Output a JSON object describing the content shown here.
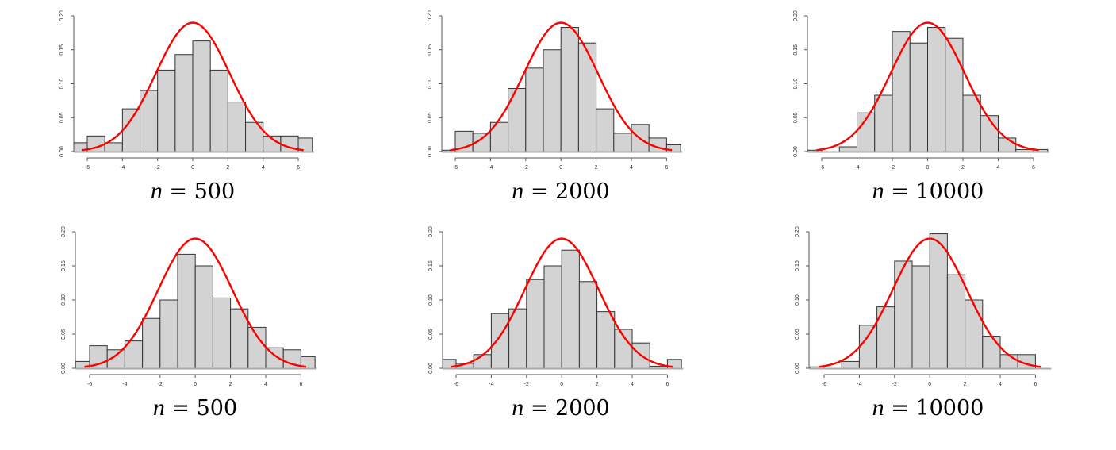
{
  "figure": {
    "layout": "2 rows x 3 columns of density histograms with a red fitted normal curve",
    "colors": {
      "bar_fill": "#d3d3d3",
      "bar_stroke": "#333333",
      "curve": "#ff0000",
      "axis": "#555555",
      "background": "#ffffff"
    }
  },
  "captions": [
    {
      "var": "n",
      "eq": " = 500"
    },
    {
      "var": "n",
      "eq": " = 2000"
    },
    {
      "var": "n",
      "eq": " = 10000"
    },
    {
      "var": "n",
      "eq": " = 500"
    },
    {
      "var": "n",
      "eq": " = 2000"
    },
    {
      "var": "n",
      "eq": " = 10000"
    }
  ],
  "chart_data": [
    {
      "type": "bar",
      "title": "n = 500",
      "row": 1,
      "col": 1,
      "xlabel": "",
      "ylabel": "",
      "xlim": [
        -6.8,
        6.8
      ],
      "ylim": [
        0,
        0.2
      ],
      "xticks": [
        -6,
        -4,
        -2,
        0,
        2,
        4,
        6
      ],
      "yticks": [
        "0.00",
        "0.05",
        "0.10",
        "0.15",
        "0.20"
      ],
      "bin_edges": [
        -6.8,
        -6,
        -5,
        -4,
        -3,
        -2,
        -1,
        0,
        1,
        2,
        3,
        4,
        5,
        6,
        6.8
      ],
      "values": [
        0.013,
        0.023,
        0.013,
        0.063,
        0.09,
        0.12,
        0.143,
        0.163,
        0.12,
        0.073,
        0.043,
        0.023,
        0.023,
        0.02
      ],
      "overlay": {
        "type": "line",
        "name": "normal density",
        "mean": 0,
        "sd": 2.1,
        "peak": 0.19,
        "x_range": [
          -6.3,
          6.3
        ]
      },
      "grid": false,
      "legend": null
    },
    {
      "type": "bar",
      "title": "n = 2000",
      "row": 1,
      "col": 2,
      "xlabel": "",
      "ylabel": "",
      "xlim": [
        -6.8,
        6.8
      ],
      "ylim": [
        0,
        0.2
      ],
      "xticks": [
        -6,
        -4,
        -2,
        0,
        2,
        4,
        6
      ],
      "yticks": [
        "0.00",
        "0.05",
        "0.10",
        "0.15",
        "0.20"
      ],
      "bin_edges": [
        -6.8,
        -6,
        -5,
        -4,
        -3,
        -2,
        -1,
        0,
        1,
        2,
        3,
        4,
        5,
        6,
        6.8
      ],
      "values": [
        0.002,
        0.03,
        0.027,
        0.043,
        0.093,
        0.123,
        0.15,
        0.183,
        0.16,
        0.063,
        0.027,
        0.04,
        0.02,
        0.01
      ],
      "overlay": {
        "type": "line",
        "name": "normal density",
        "mean": 0,
        "sd": 2.1,
        "peak": 0.19,
        "x_range": [
          -6.3,
          6.3
        ]
      },
      "grid": false,
      "legend": null
    },
    {
      "type": "bar",
      "title": "n = 10000",
      "row": 1,
      "col": 3,
      "xlabel": "",
      "ylabel": "",
      "xlim": [
        -6.8,
        6.8
      ],
      "ylim": [
        0,
        0.2
      ],
      "xticks": [
        -6,
        -4,
        -2,
        0,
        2,
        4,
        6
      ],
      "yticks": [
        "0.00",
        "0.05",
        "0.10",
        "0.15",
        "0.20"
      ],
      "bin_edges": [
        -6.8,
        -6,
        -5,
        -4,
        -3,
        -2,
        -1,
        0,
        1,
        2,
        3,
        4,
        5,
        6,
        6.8
      ],
      "values": [
        0.002,
        0.0,
        0.007,
        0.057,
        0.083,
        0.177,
        0.16,
        0.183,
        0.167,
        0.083,
        0.053,
        0.02,
        0.003,
        0.003
      ],
      "overlay": {
        "type": "line",
        "name": "normal density",
        "mean": 0,
        "sd": 2.1,
        "peak": 0.19,
        "x_range": [
          -6.3,
          6.3
        ]
      },
      "grid": false,
      "legend": null
    },
    {
      "type": "bar",
      "title": "n = 500",
      "row": 2,
      "col": 1,
      "xlabel": "",
      "ylabel": "",
      "xlim": [
        -6.8,
        6.8
      ],
      "ylim": [
        0,
        0.2
      ],
      "xticks": [
        -6,
        -4,
        -2,
        0,
        2,
        4,
        6
      ],
      "yticks": [
        "0.00",
        "0.05",
        "0.10",
        "0.15",
        "0.20"
      ],
      "bin_edges": [
        -6.8,
        -6,
        -5,
        -4,
        -3,
        -2,
        -1,
        0,
        1,
        2,
        3,
        4,
        5,
        6,
        6.8
      ],
      "values": [
        0.01,
        0.033,
        0.027,
        0.04,
        0.073,
        0.1,
        0.167,
        0.15,
        0.103,
        0.087,
        0.06,
        0.03,
        0.027,
        0.017
      ],
      "overlay": {
        "type": "line",
        "name": "normal density",
        "mean": 0,
        "sd": 2.1,
        "peak": 0.19,
        "x_range": [
          -6.3,
          6.3
        ]
      },
      "grid": false,
      "legend": null
    },
    {
      "type": "bar",
      "title": "n = 2000",
      "row": 2,
      "col": 2,
      "xlabel": "",
      "ylabel": "",
      "xlim": [
        -6.8,
        6.8
      ],
      "ylim": [
        0,
        0.2
      ],
      "xticks": [
        -6,
        -4,
        -2,
        0,
        2,
        4,
        6
      ],
      "yticks": [
        "0.00",
        "0.05",
        "0.10",
        "0.15",
        "0.20"
      ],
      "bin_edges": [
        -6.8,
        -6,
        -5,
        -4,
        -3,
        -2,
        -1,
        0,
        1,
        2,
        3,
        4,
        5,
        6,
        6.8
      ],
      "values": [
        0.013,
        0.007,
        0.02,
        0.08,
        0.087,
        0.13,
        0.15,
        0.173,
        0.127,
        0.083,
        0.057,
        0.037,
        0.003,
        0.013
      ],
      "overlay": {
        "type": "line",
        "name": "normal density",
        "mean": 0,
        "sd": 2.1,
        "peak": 0.19,
        "x_range": [
          -6.3,
          6.3
        ]
      },
      "grid": false,
      "legend": null
    },
    {
      "type": "bar",
      "title": "n = 10000",
      "row": 2,
      "col": 3,
      "xlabel": "",
      "ylabel": "",
      "xlim": [
        -6.8,
        6.8
      ],
      "ylim": [
        0,
        0.2
      ],
      "xticks": [
        -6,
        -4,
        -2,
        0,
        2,
        4,
        6
      ],
      "yticks": [
        "0.00",
        "0.05",
        "0.10",
        "0.15",
        "0.20"
      ],
      "bin_edges": [
        -6.8,
        -6,
        -5,
        -4,
        -3,
        -2,
        -1,
        0,
        1,
        2,
        3,
        4,
        5,
        6,
        6.8
      ],
      "values": [
        0.002,
        0.0,
        0.01,
        0.063,
        0.09,
        0.157,
        0.15,
        0.197,
        0.137,
        0.1,
        0.047,
        0.02,
        0.02,
        0.0
      ],
      "overlay": {
        "type": "line",
        "name": "normal density",
        "mean": 0,
        "sd": 2.1,
        "peak": 0.19,
        "x_range": [
          -6.3,
          6.3
        ]
      },
      "grid": false,
      "legend": null
    }
  ]
}
